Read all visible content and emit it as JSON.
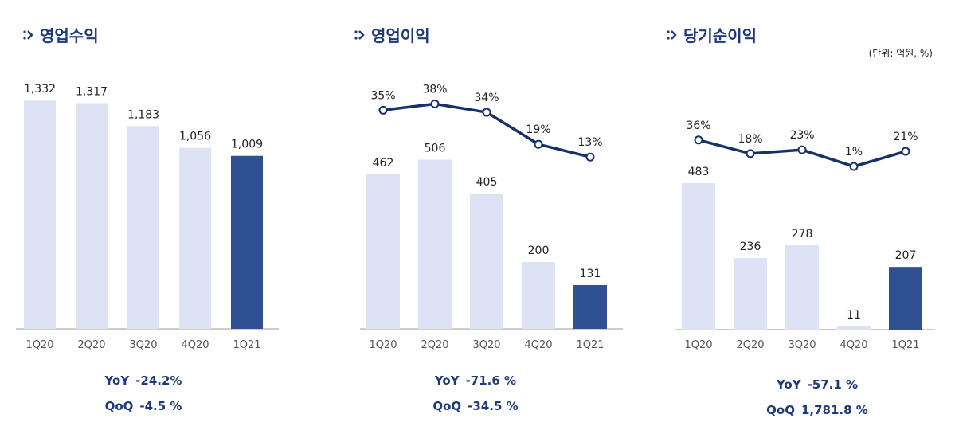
{
  "unit_note": "(단위: 억원, %)",
  "chart_data": [
    {
      "type": "bar",
      "title": "영업수익",
      "categories": [
        "1Q20",
        "2Q20",
        "3Q20",
        "4Q20",
        "1Q21"
      ],
      "values": [
        1332,
        1317,
        1183,
        1056,
        1009
      ],
      "value_labels": [
        "1,332",
        "1,317",
        "1,183",
        "1,056",
        "1,009"
      ],
      "ylim": [
        0,
        1500
      ],
      "highlight_index": 4,
      "colors": {
        "bar": "#dbe3f4",
        "highlight": "#2f5194",
        "axis": "#999999"
      },
      "stats": [
        {
          "label": "YoY",
          "value": "-24.2%"
        },
        {
          "label": "QoQ",
          "value": "-4.5 %"
        }
      ]
    },
    {
      "type": "bar+line",
      "title": "영업이익",
      "categories": [
        "1Q20",
        "2Q20",
        "3Q20",
        "4Q20",
        "1Q21"
      ],
      "values": [
        462,
        506,
        405,
        200,
        131
      ],
      "value_labels": [
        "462",
        "506",
        "405",
        "200",
        "131"
      ],
      "line_values": [
        35,
        38,
        34,
        19,
        13
      ],
      "line_labels": [
        "35%",
        "38%",
        "34%",
        "19%",
        "13%"
      ],
      "ylim": [
        0,
        650
      ],
      "line_ylim": [
        0,
        40
      ],
      "highlight_index": 4,
      "colors": {
        "bar": "#dbe3f4",
        "highlight": "#2f5194",
        "line": "#16306b",
        "axis": "#999999"
      },
      "stats": [
        {
          "label": "YoY",
          "value": "-71.6 %"
        },
        {
          "label": "QoQ",
          "value": "-34.5 %"
        }
      ]
    },
    {
      "type": "bar+line",
      "title": "당기순이익",
      "categories": [
        "1Q20",
        "2Q20",
        "3Q20",
        "4Q20",
        "1Q21"
      ],
      "values": [
        483,
        236,
        278,
        11,
        207
      ],
      "value_labels": [
        "483",
        "236",
        "278",
        "11",
        "207"
      ],
      "line_values": [
        36,
        18,
        23,
        1,
        21
      ],
      "line_labels": [
        "36%",
        "18%",
        "23%",
        "1%",
        "21%"
      ],
      "ylim": [
        0,
        680
      ],
      "line_ylim": [
        0,
        40
      ],
      "highlight_index": 4,
      "colors": {
        "bar": "#dbe3f4",
        "highlight": "#2f5194",
        "line": "#16306b",
        "axis": "#999999"
      },
      "stats": [
        {
          "label": "YoY",
          "value": "-57.1 %"
        },
        {
          "label": "QoQ",
          "value": "1,781.8 %"
        }
      ]
    }
  ]
}
